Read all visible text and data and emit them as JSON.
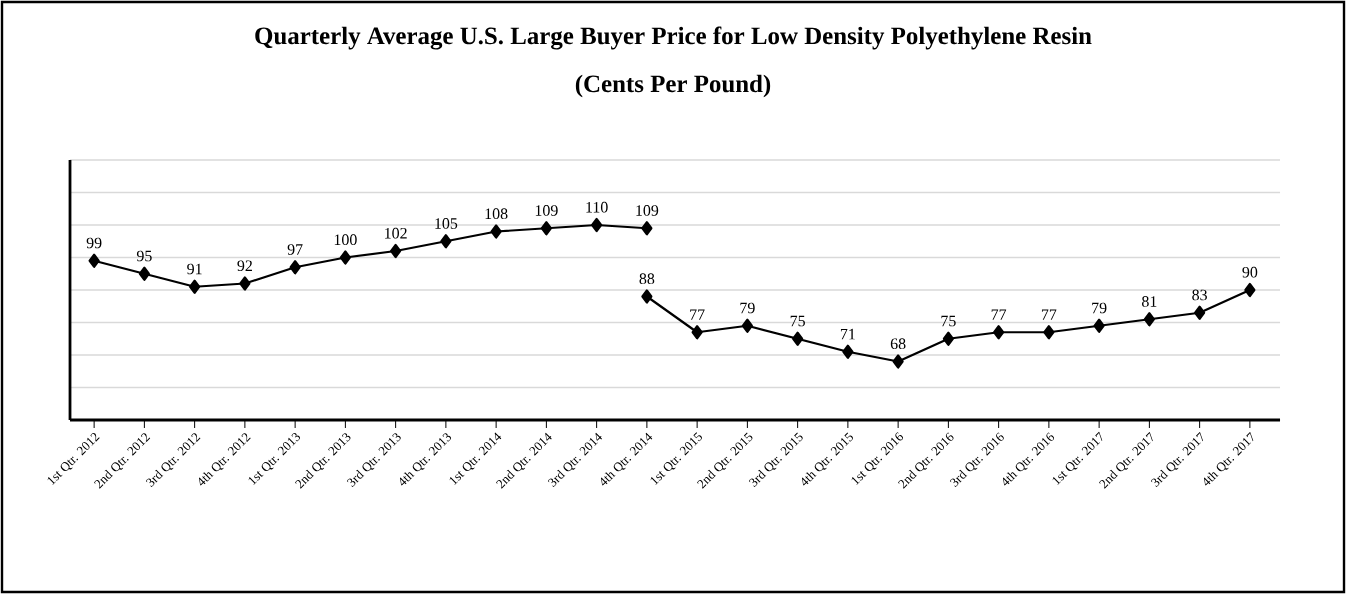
{
  "chart_data": {
    "type": "line",
    "title": "Quarterly Average U.S. Large Buyer Price for Low Density Polyethylene Resin",
    "subtitle": "(Cents Per Pound)",
    "categories": [
      "1st Qtr. 2012",
      "2nd Qtr. 2012",
      "3rd Qtr. 2012",
      "4th Qtr. 2012",
      "1st Qtr. 2013",
      "2nd Qtr. 2013",
      "3rd Qtr. 2013",
      "4th Qtr. 2013",
      "1st Qtr. 2014",
      "2nd Qtr. 2014",
      "3rd Qtr. 2014",
      "4th Qtr. 2014",
      "1st Qtr. 2015",
      "2nd Qtr. 2015",
      "3rd Qtr. 2015",
      "4th Qtr. 2015",
      "1st Qtr. 2016",
      "2nd Qtr. 2016",
      "3rd Qtr. 2016",
      "4th Qtr. 2016",
      "1st Qtr. 2017",
      "2nd Qtr. 2017",
      "3rd Qtr. 2017",
      "4th Qtr. 2017"
    ],
    "series": [
      {
        "color": "#000000",
        "values": [
          99,
          95,
          91,
          92,
          97,
          100,
          102,
          105,
          108,
          109,
          110,
          109,
          null,
          null,
          null,
          null,
          null,
          null,
          null,
          null,
          null,
          null,
          null,
          null
        ]
      },
      {
        "color": "#000000",
        "values": [
          null,
          null,
          null,
          null,
          null,
          null,
          null,
          null,
          null,
          null,
          null,
          88,
          77,
          79,
          75,
          71,
          68,
          75,
          77,
          77,
          79,
          81,
          83,
          90
        ]
      }
    ],
    "ylim": [
      50,
      130
    ],
    "yticks": [
      {
        "value": 50,
        "label": null
      },
      {
        "value": 60,
        "label": null
      },
      {
        "value": 70,
        "label": null
      },
      {
        "value": 80,
        "label": null
      },
      {
        "value": 90,
        "label": null
      },
      {
        "value": 100,
        "label": null
      },
      {
        "value": 110,
        "label": null
      },
      {
        "value": 120,
        "label": null
      },
      {
        "value": 130,
        "label": null
      }
    ],
    "tick_labels": "x",
    "grid": "y",
    "marker": "diamond",
    "line_style": "solid",
    "data_labels": true
  }
}
